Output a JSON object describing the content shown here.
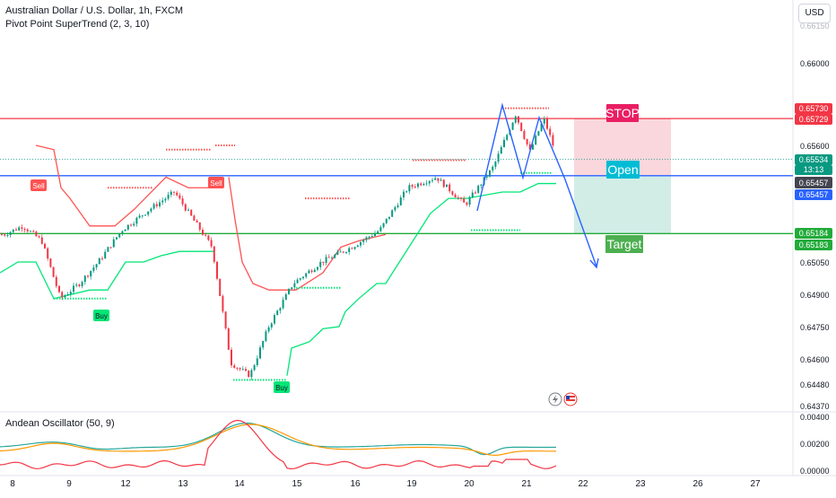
{
  "symbol": {
    "title": "Australian Dollar / U.S. Dollar, 1h, FXCM",
    "indicator": "Pivot Point SuperTrend (2, 3, 10)",
    "oscillator": "Andean Oscillator (50, 9)",
    "currency_button": "USD"
  },
  "price_axis": {
    "ticks": [
      "0.66000",
      "0.65600",
      "0.65050",
      "0.64900",
      "0.64750",
      "0.64600",
      "0.64480",
      "0.64370"
    ],
    "top_partial": "0.66150"
  },
  "price_badges": {
    "stop_top": "0.65730",
    "stop_bottom": "0.65729",
    "current": "0.65534",
    "countdown": "13:13",
    "open_dark": "0.65457",
    "open_blue": "0.65457",
    "target_top": "0.65184",
    "target_bottom": "0.65183"
  },
  "osc_axis": {
    "ticks": [
      "0.00400",
      "0.00200",
      "0.00000"
    ]
  },
  "time_axis": {
    "ticks": [
      "8",
      "9",
      "12",
      "13",
      "14",
      "15",
      "16",
      "19",
      "20",
      "21",
      "22",
      "23",
      "26",
      "27"
    ]
  },
  "annotations": {
    "stop": "STOP",
    "open": "Open",
    "target": "Target",
    "sell_labels": [
      "Sell",
      "Sell"
    ],
    "buy_labels": [
      "Buy",
      "Buy"
    ]
  },
  "colors": {
    "up": "#089981",
    "down": "#f23645",
    "stop_line": "#f23645",
    "open_line": "#2962ff",
    "target_line": "#22ab3a",
    "supertrend_up": "#00e676",
    "supertrend_down": "#ff5252",
    "stop_zone": "#f9cdd3",
    "target_zone": "#cdebe3",
    "osc_bull": "#26a69a",
    "osc_bear": "#f23645",
    "osc_signal": "#ff9800",
    "pattern": "#2962ff"
  },
  "chart_data": {
    "type": "candlestick",
    "title": "Australian Dollar / U.S. Dollar, 1h, FXCM",
    "x_categories": [
      "8",
      "9",
      "12",
      "13",
      "14",
      "15",
      "16",
      "19",
      "20",
      "21",
      "22",
      "23",
      "26",
      "27"
    ],
    "y_range": [
      0.6437,
      0.6615
    ],
    "key_levels": {
      "stop": 0.6573,
      "open": 0.65457,
      "target": 0.65184,
      "last": 0.65534
    },
    "price_path": [
      [
        "8",
        0.6518
      ],
      [
        "8",
        0.6522
      ],
      [
        "8",
        0.6515
      ],
      [
        "9",
        0.6488
      ],
      [
        "9",
        0.6495
      ],
      [
        "9",
        0.6505
      ],
      [
        "12",
        0.652
      ],
      [
        "12",
        0.653
      ],
      [
        "13",
        0.6538
      ],
      [
        "13",
        0.6525
      ],
      [
        "13",
        0.6512
      ],
      [
        "14",
        0.6458
      ],
      [
        "14",
        0.6452
      ],
      [
        "14",
        0.6475
      ],
      [
        "15",
        0.6495
      ],
      [
        "15",
        0.6505
      ],
      [
        "16",
        0.6512
      ],
      [
        "16",
        0.652
      ],
      [
        "19",
        0.654
      ],
      [
        "19",
        0.6545
      ],
      [
        "20",
        0.6532
      ],
      [
        "20",
        0.655
      ],
      [
        "21",
        0.6575
      ],
      [
        "21",
        0.6557
      ],
      [
        "21",
        0.6573
      ],
      [
        "21",
        0.6553
      ]
    ],
    "oscillator": {
      "name": "Andean Oscillator (50, 9)",
      "y_range": [
        0.0,
        0.004
      ],
      "ticks": [
        0.004,
        0.002,
        0.0
      ]
    }
  }
}
